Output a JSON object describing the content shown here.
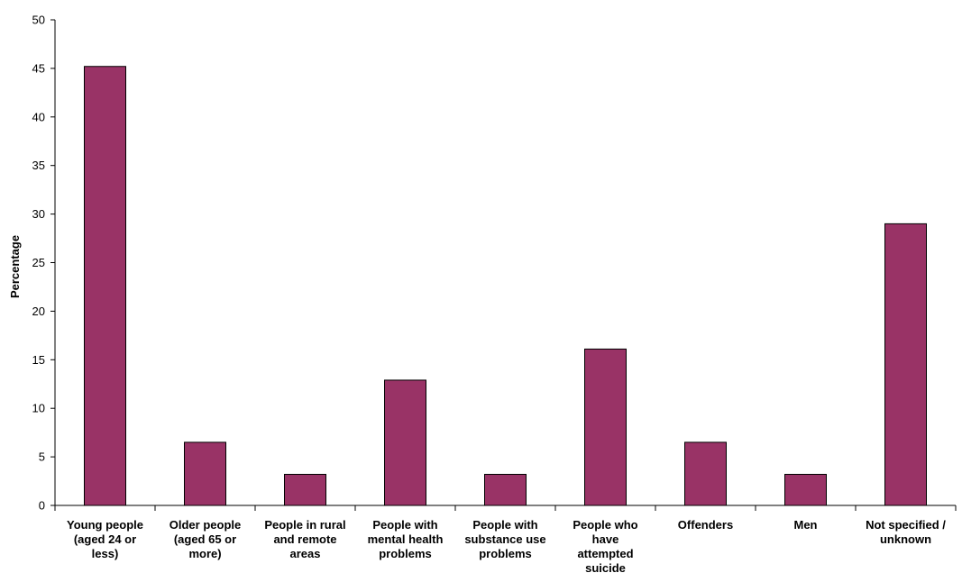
{
  "chart_data": {
    "type": "bar",
    "title": "",
    "xlabel": "",
    "ylabel": "Percentage",
    "ylim": [
      0,
      50
    ],
    "yticks": [
      0,
      5,
      10,
      15,
      20,
      25,
      30,
      35,
      40,
      45,
      50
    ],
    "grid": false,
    "legend": "none",
    "bar_color": "#993366",
    "categories": [
      [
        "Young people",
        "(aged 24 or",
        "less)"
      ],
      [
        "Older people",
        "(aged 65 or",
        "more)"
      ],
      [
        "People in rural",
        "and remote",
        "areas"
      ],
      [
        "People with",
        "mental health",
        "problems"
      ],
      [
        "People with",
        "substance use",
        "problems"
      ],
      [
        "People who",
        "have",
        "attempted",
        "suicide"
      ],
      [
        "Offenders"
      ],
      [
        "Men"
      ],
      [
        "Not specified /",
        "unknown"
      ]
    ],
    "values": [
      45.2,
      6.5,
      3.2,
      12.9,
      3.2,
      16.1,
      6.5,
      3.2,
      29.0
    ]
  }
}
